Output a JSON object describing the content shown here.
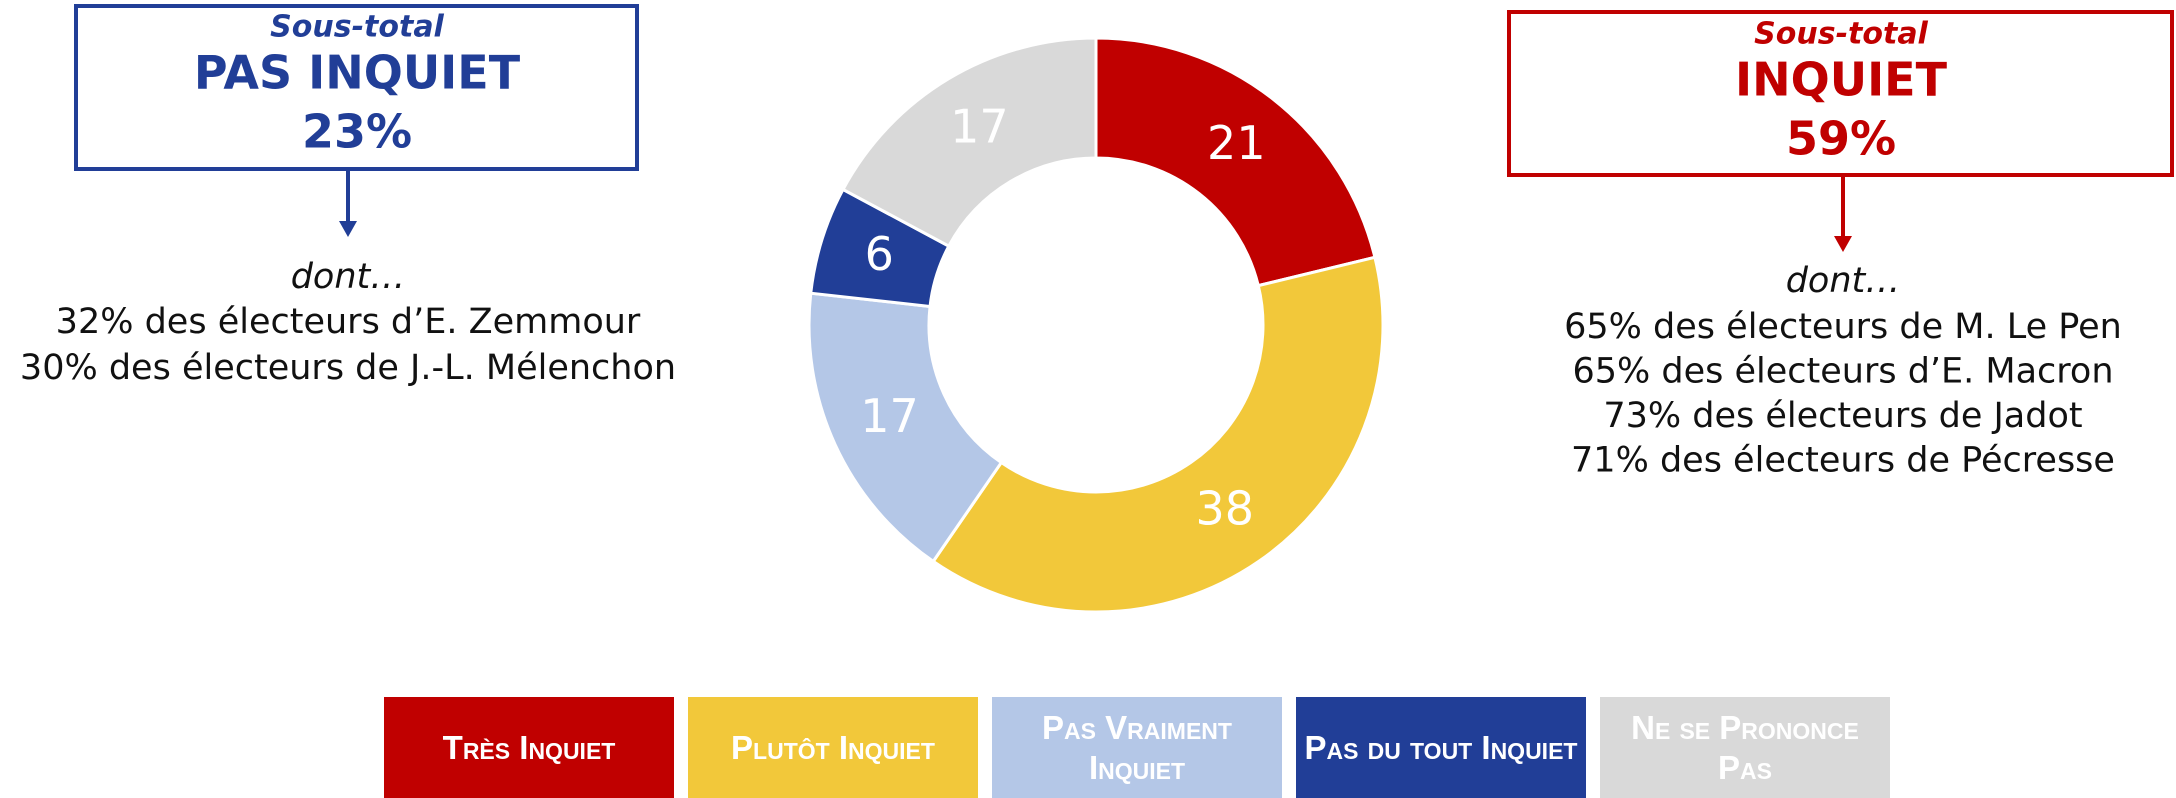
{
  "chart_data": {
    "type": "pie",
    "donut": true,
    "categories": [
      "Très Inquiet",
      "Plutôt Inquiet",
      "Pas Vraiment Inquiet",
      "Pas du tout Inquiet",
      "Ne se Prononce Pas"
    ],
    "values": [
      21,
      38,
      17,
      6,
      17
    ],
    "colors": [
      "#c00000",
      "#f2c83a",
      "#b4c7e7",
      "#213e97",
      "#d9d9d9"
    ],
    "annotations": [
      {
        "subtitle": "Sous-total",
        "label": "PAS INQUIET",
        "total": "23%",
        "intro": "dont…",
        "color": "#213e97",
        "lines": [
          "32% des électeurs d’E. Zemmour",
          "30% des électeurs de J.-L. Mélenchon"
        ]
      },
      {
        "subtitle": "Sous-total",
        "label": "INQUIET",
        "total": "59%",
        "intro": "dont…",
        "color": "#c00000",
        "lines": [
          "65% des électeurs de M. Le Pen",
          "65% des électeurs d’E. Macron",
          "73% des électeurs de Jadot",
          "71% des électeurs de Pécresse"
        ]
      }
    ]
  }
}
